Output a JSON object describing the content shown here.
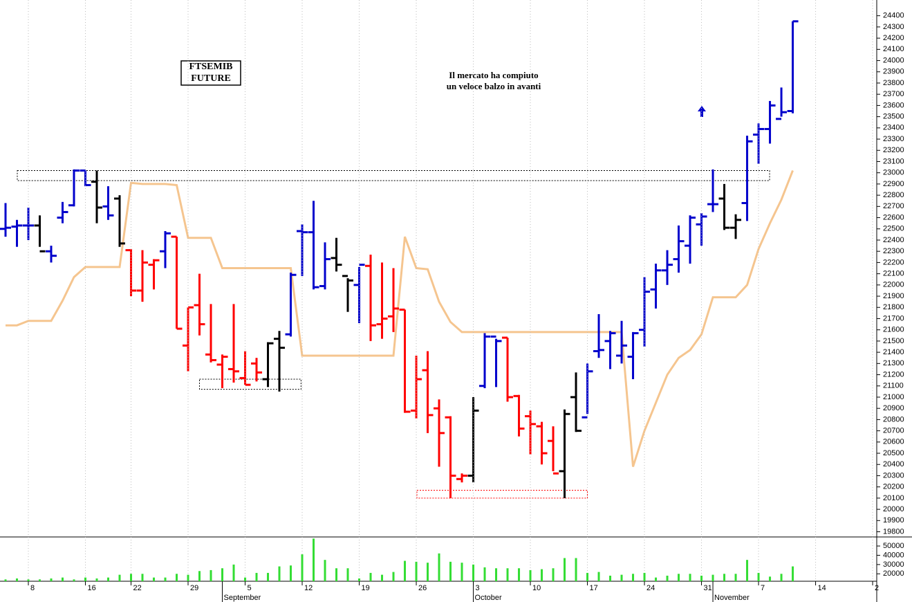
{
  "chart_data": [
    {
      "type": "ohlc",
      "label_box": [
        "FTSEMIB",
        "FUTURE"
      ],
      "annotation": [
        "Il mercato ha compiuto",
        "un veloce balzo in avanti"
      ],
      "annotation_color": "#0000cc",
      "x": [
        0,
        1,
        2,
        3,
        4,
        5,
        6,
        7,
        8,
        9,
        10,
        11,
        12,
        13,
        14,
        15,
        16,
        17,
        18,
        19,
        20,
        21,
        22,
        23,
        24,
        25,
        26,
        27,
        28,
        29,
        30,
        31,
        32,
        33,
        34,
        35,
        36,
        37,
        38,
        39,
        40,
        41,
        42,
        43,
        44,
        45,
        46,
        47,
        48,
        49,
        50,
        51,
        52,
        53,
        54,
        55,
        56,
        57,
        58,
        59,
        60,
        61,
        62,
        63,
        64,
        65,
        66,
        67,
        68,
        69
      ],
      "open": [
        22500,
        22520,
        22530,
        22530,
        22300,
        22600,
        22710,
        23020,
        22920,
        22700,
        22770,
        22310,
        21950,
        22180,
        22300,
        22430,
        21460,
        21820,
        21380,
        21290,
        21250,
        21170,
        21300,
        21160,
        21520,
        21560,
        22480,
        22470,
        21990,
        22240,
        22080,
        22000,
        22170,
        21650,
        21720,
        21780,
        20880,
        21240,
        20900,
        20820,
        20270,
        20300,
        21100,
        21540,
        21530,
        21010,
        20830,
        20740,
        20610,
        20340,
        21000,
        20820,
        21410,
        21500,
        21370,
        21360,
        21600,
        21960,
        22130,
        22230,
        22350,
        22540,
        22720,
        22770,
        22510,
        22730,
        23340,
        23390,
        23480,
        23550
      ],
      "high": [
        22730,
        22580,
        22690,
        22620,
        22350,
        22740,
        23030,
        23020,
        23020,
        22880,
        22800,
        22320,
        22310,
        22230,
        22480,
        22430,
        21800,
        22100,
        21830,
        21380,
        21830,
        21410,
        21350,
        21490,
        21590,
        22110,
        22540,
        22750,
        22380,
        22420,
        22060,
        22160,
        22270,
        22200,
        22150,
        21780,
        21370,
        21410,
        20980,
        20830,
        20320,
        21000,
        21570,
        21520,
        21530,
        21020,
        20880,
        20780,
        20740,
        20890,
        21220,
        21300,
        21740,
        21590,
        21680,
        21580,
        22070,
        22190,
        22310,
        22530,
        22620,
        22640,
        23030,
        22900,
        22630,
        23330,
        23440,
        23640,
        23760,
        24350
      ],
      "low": [
        22430,
        22340,
        22400,
        22340,
        22200,
        22550,
        22700,
        22880,
        22550,
        22580,
        22340,
        21900,
        21850,
        21960,
        22150,
        21610,
        21230,
        21550,
        21310,
        21080,
        21130,
        21110,
        21140,
        21090,
        21050,
        21540,
        22080,
        21960,
        21960,
        22120,
        21760,
        21660,
        21500,
        21520,
        21580,
        20860,
        20810,
        20680,
        20380,
        20100,
        20240,
        20240,
        21080,
        21090,
        20960,
        20650,
        20490,
        20400,
        20340,
        20100,
        20690,
        20850,
        21350,
        21250,
        21300,
        21160,
        21450,
        21790,
        22000,
        22110,
        22190,
        22350,
        22650,
        22490,
        22410,
        22570,
        23080,
        23260,
        23500,
        23530
      ],
      "close": [
        22510,
        22530,
        22530,
        22300,
        22260,
        22650,
        23020,
        22890,
        22690,
        22620,
        22370,
        21950,
        22200,
        22220,
        22460,
        21610,
        21800,
        21650,
        21330,
        21360,
        21230,
        21110,
        21220,
        21480,
        21440,
        22090,
        22470,
        21980,
        22230,
        22180,
        22040,
        22180,
        21640,
        21700,
        21790,
        20870,
        21160,
        20840,
        20680,
        20300,
        20300,
        20880,
        21540,
        21500,
        21000,
        20720,
        20760,
        20500,
        20320,
        20850,
        20700,
        21230,
        21420,
        21570,
        21460,
        21570,
        21940,
        22130,
        22180,
        22390,
        22600,
        22610,
        22720,
        22510,
        22580,
        23280,
        23390,
        23600,
        23540,
        24350
      ],
      "bar_colors": [
        "#0000cc",
        "#0000cc",
        "#0000cc",
        "#000000",
        "#0000cc",
        "#0000cc",
        "#0000cc",
        "#0000cc",
        "#000000",
        "#0000cc",
        "#000000",
        "#ff0000",
        "#ff0000",
        "#ff0000",
        "#0000cc",
        "#ff0000",
        "#ff0000",
        "#ff0000",
        "#ff0000",
        "#ff0000",
        "#ff0000",
        "#ff0000",
        "#ff0000",
        "#000000",
        "#000000",
        "#0000cc",
        "#0000cc",
        "#0000cc",
        "#0000cc",
        "#000000",
        "#000000",
        "#0000cc",
        "#ff0000",
        "#ff0000",
        "#ff0000",
        "#ff0000",
        "#ff0000",
        "#ff0000",
        "#ff0000",
        "#ff0000",
        "#ff0000",
        "#000000",
        "#0000cc",
        "#0000cc",
        "#ff0000",
        "#ff0000",
        "#ff0000",
        "#ff0000",
        "#ff0000",
        "#000000",
        "#000000",
        "#0000cc",
        "#0000cc",
        "#0000cc",
        "#0000cc",
        "#0000cc",
        "#0000cc",
        "#0000cc",
        "#0000cc",
        "#0000cc",
        "#0000cc",
        "#0000cc",
        "#0000cc",
        "#000000",
        "#000000",
        "#0000cc",
        "#0000cc",
        "#0000cc",
        "#0000cc",
        "#0000cc"
      ],
      "overlay": {
        "color": "#f5c58f",
        "values": [
          21640,
          21640,
          21680,
          21680,
          21680,
          21860,
          22070,
          22160,
          22160,
          22160,
          22160,
          22910,
          22900,
          22900,
          22900,
          22890,
          22420,
          22420,
          22420,
          22150,
          22150,
          22150,
          22150,
          22150,
          22150,
          22150,
          21370,
          21370,
          21370,
          21370,
          21370,
          21370,
          21370,
          21370,
          21370,
          22430,
          22150,
          22140,
          21850,
          21670,
          21580,
          21580,
          21580,
          21580,
          21580,
          21580,
          21580,
          21580,
          21580,
          21580,
          21580,
          21580,
          21580,
          21580,
          21580,
          20380,
          20700,
          20950,
          21200,
          21350,
          21420,
          21560,
          21890,
          21890,
          21890,
          22000,
          22320,
          22550,
          22760,
          23020
        ]
      },
      "zones": [
        {
          "x": [
            1.03,
            66.97
          ],
          "y": [
            22930,
            23020
          ],
          "color": "#000000"
        },
        {
          "x": [
            17.0,
            25.9
          ],
          "y": [
            21070,
            21160
          ],
          "color": "#000000"
        },
        {
          "x": [
            36.06,
            51.0
          ],
          "y": [
            20100,
            20170
          ],
          "color": "#ff0000"
        }
      ],
      "xlim": [
        -0.485,
        76.36
      ],
      "ylim": [
        19760,
        24540
      ],
      "yticks": [
        19800,
        19900,
        20000,
        20100,
        20200,
        20300,
        20400,
        20500,
        20600,
        20700,
        20800,
        20900,
        21000,
        21100,
        21200,
        21300,
        21400,
        21500,
        21600,
        21700,
        21800,
        21900,
        22000,
        22100,
        22200,
        22300,
        22400,
        22500,
        22600,
        22700,
        22800,
        22900,
        23000,
        23100,
        23200,
        23300,
        23400,
        23500,
        23600,
        23700,
        23800,
        23900,
        24000,
        24100,
        24200,
        24300,
        24400
      ]
    },
    {
      "type": "bar",
      "x": [
        0,
        1,
        2,
        3,
        4,
        5,
        6,
        7,
        8,
        9,
        10,
        11,
        12,
        13,
        14,
        15,
        16,
        17,
        18,
        19,
        20,
        21,
        22,
        23,
        24,
        25,
        26,
        27,
        28,
        29,
        30,
        31,
        32,
        33,
        34,
        35,
        36,
        37,
        38,
        39,
        40,
        41,
        42,
        43,
        44,
        45,
        46,
        47,
        48,
        49,
        50,
        51,
        52,
        53,
        54,
        55,
        56,
        57,
        58,
        59,
        60,
        61,
        62,
        63,
        64,
        65,
        66,
        67,
        68,
        69
      ],
      "values": [
        14000,
        15000,
        14000,
        14000,
        15000,
        16000,
        14000,
        16000,
        15000,
        16000,
        19000,
        20000,
        20000,
        16000,
        16000,
        20000,
        19000,
        23000,
        24000,
        26000,
        30000,
        16000,
        21000,
        21000,
        28000,
        29000,
        41000,
        58000,
        35000,
        26000,
        26000,
        15000,
        21000,
        19000,
        22000,
        34000,
        33000,
        32000,
        42000,
        33000,
        32000,
        30000,
        27000,
        26000,
        26000,
        26000,
        24000,
        25000,
        26000,
        37000,
        37000,
        21000,
        22000,
        18000,
        19000,
        20000,
        21000,
        16000,
        18000,
        20000,
        20000,
        18000,
        19000,
        20000,
        20000,
        35000,
        21000,
        17000,
        20000,
        28000
      ],
      "color": "#33dd33",
      "xlim": [
        -0.485,
        76.36
      ],
      "ylim": [
        12000,
        59000
      ],
      "yticks": [
        20000,
        30000,
        40000,
        50000
      ],
      "xticks": [
        {
          "value": 2,
          "label": "8"
        },
        {
          "value": 7,
          "label": "16"
        },
        {
          "value": 11,
          "label": "22"
        },
        {
          "value": 16,
          "label": "29"
        },
        {
          "value": 21,
          "label": "5"
        },
        {
          "value": 26,
          "label": "12"
        },
        {
          "value": 31,
          "label": "19"
        },
        {
          "value": 36,
          "label": "26"
        },
        {
          "value": 41,
          "label": "3"
        },
        {
          "value": 46,
          "label": "10"
        },
        {
          "value": 51,
          "label": "17"
        },
        {
          "value": 56,
          "label": "24"
        },
        {
          "value": 61,
          "label": "31"
        },
        {
          "value": 66,
          "label": "7"
        },
        {
          "value": 71,
          "label": "14"
        },
        {
          "value": 76,
          "label": "2"
        }
      ],
      "month_ticks": [
        {
          "value": 19,
          "label": "September"
        },
        {
          "value": 41,
          "label": "October"
        },
        {
          "value": 62,
          "label": "November"
        }
      ],
      "grid": "x"
    }
  ]
}
